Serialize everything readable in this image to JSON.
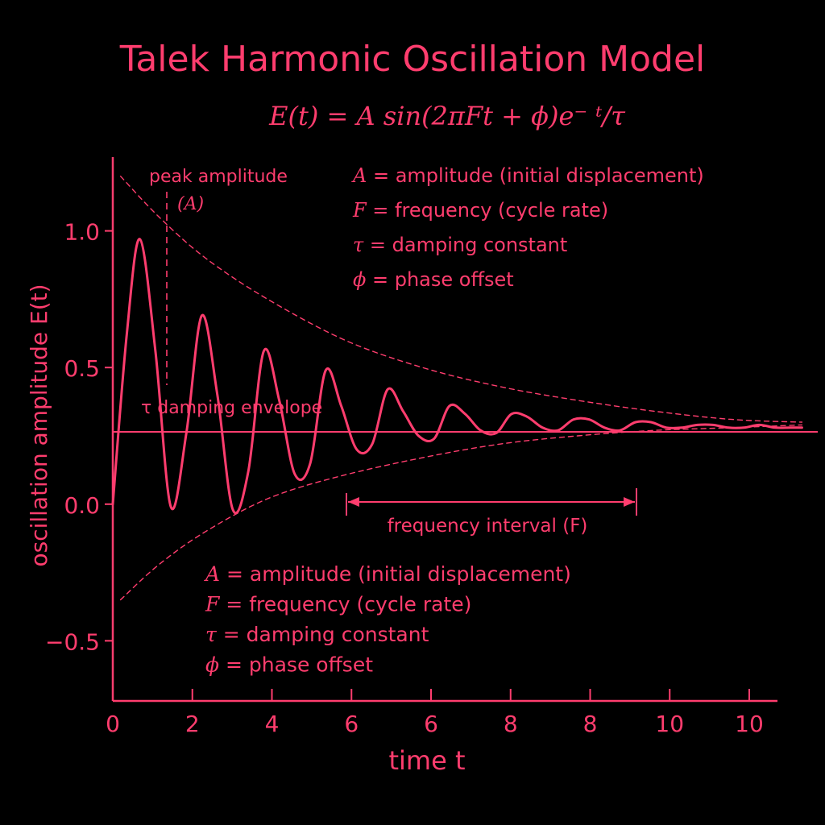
{
  "accent": "#ff3d6e",
  "background": "#000000",
  "chart_data": {
    "type": "line",
    "title": "Talek Harmonic Oscillation Model",
    "subtitle": "E(t) = A sin(2πFt + ϕ)e⁻ ᵗ/τ",
    "xlabel": "time t",
    "ylabel": "oscillation amplitude E(t)",
    "x_ticks": [
      "0",
      "2",
      "4",
      "6",
      "6",
      "8",
      "8",
      "10",
      "10"
    ],
    "y_ticks": [
      {
        "value": 1.0,
        "label": "1.0"
      },
      {
        "value": 0.5,
        "label": "0.5"
      },
      {
        "value": 0.0,
        "label": "0.0"
      },
      {
        "value": -0.5,
        "label": "−0.5"
      }
    ],
    "xlim": [
      0,
      9
    ],
    "ylim": [
      -0.72,
      1.27
    ],
    "series": [
      {
        "style": "solid",
        "x": [
          0,
          0.18,
          0.35,
          0.55,
          0.75,
          0.95,
          1.15,
          1.35,
          1.55,
          1.75,
          1.95,
          2.15,
          2.35,
          2.55,
          2.75,
          2.95,
          3.15,
          3.35,
          3.55,
          3.75,
          3.95,
          4.15,
          4.35,
          4.55,
          4.75,
          4.95,
          5.15,
          5.35,
          5.55,
          5.75,
          5.95,
          6.15,
          6.35,
          6.55,
          6.75,
          6.95,
          7.15,
          7.35,
          7.55,
          7.75,
          7.95,
          8.15,
          8.35,
          8.55,
          8.75,
          8.9
        ],
        "y": [
          0.0,
          0.62,
          0.97,
          0.56,
          -0.01,
          0.26,
          0.69,
          0.4,
          -0.02,
          0.12,
          0.56,
          0.38,
          0.11,
          0.15,
          0.49,
          0.36,
          0.2,
          0.22,
          0.42,
          0.34,
          0.25,
          0.24,
          0.36,
          0.33,
          0.27,
          0.26,
          0.33,
          0.32,
          0.28,
          0.27,
          0.31,
          0.31,
          0.28,
          0.27,
          0.3,
          0.3,
          0.28,
          0.28,
          0.29,
          0.29,
          0.28,
          0.28,
          0.29,
          0.28,
          0.28,
          0.28
        ]
      },
      {
        "style": "dashed",
        "x": [
          0.1,
          0.6,
          1.2,
          2.0,
          3.0,
          4.0,
          5.0,
          6.0,
          7.0,
          8.0,
          8.9
        ],
        "y": [
          1.2,
          1.05,
          0.9,
          0.75,
          0.6,
          0.5,
          0.43,
          0.38,
          0.34,
          0.31,
          0.3
        ]
      },
      {
        "style": "dashed",
        "x": [
          0.1,
          0.6,
          1.2,
          2.0,
          2.9,
          4.0,
          5.0,
          6.0,
          7.0,
          8.0,
          8.9
        ],
        "y": [
          -0.35,
          -0.22,
          -0.1,
          0.02,
          0.1,
          0.17,
          0.22,
          0.25,
          0.27,
          0.28,
          0.29
        ]
      }
    ],
    "baseline": 0.28,
    "grid": false,
    "annotations": {
      "peak_label": "peak amplitude",
      "peak_symbol": "(A)",
      "envelope_label": "τ damping envelope",
      "interval_label": "frequency interval (F)"
    },
    "legend_top": [
      {
        "sym": "A",
        "text": " = amplitude (initial displacement)"
      },
      {
        "sym": "F",
        "text": " = frequency (cycle rate)"
      },
      {
        "sym": "τ",
        "text": " = damping constant"
      },
      {
        "sym": "ϕ",
        "text": " = phase offset"
      }
    ],
    "legend_bottom": [
      {
        "sym": "A",
        "text": " = amplitude (initial displacement)"
      },
      {
        "sym": "F",
        "text": " = frequency (cycle rate)"
      },
      {
        "sym": "τ",
        "text": " = damping constant"
      },
      {
        "sym": "ϕ",
        "text": " = phase offset"
      }
    ]
  }
}
